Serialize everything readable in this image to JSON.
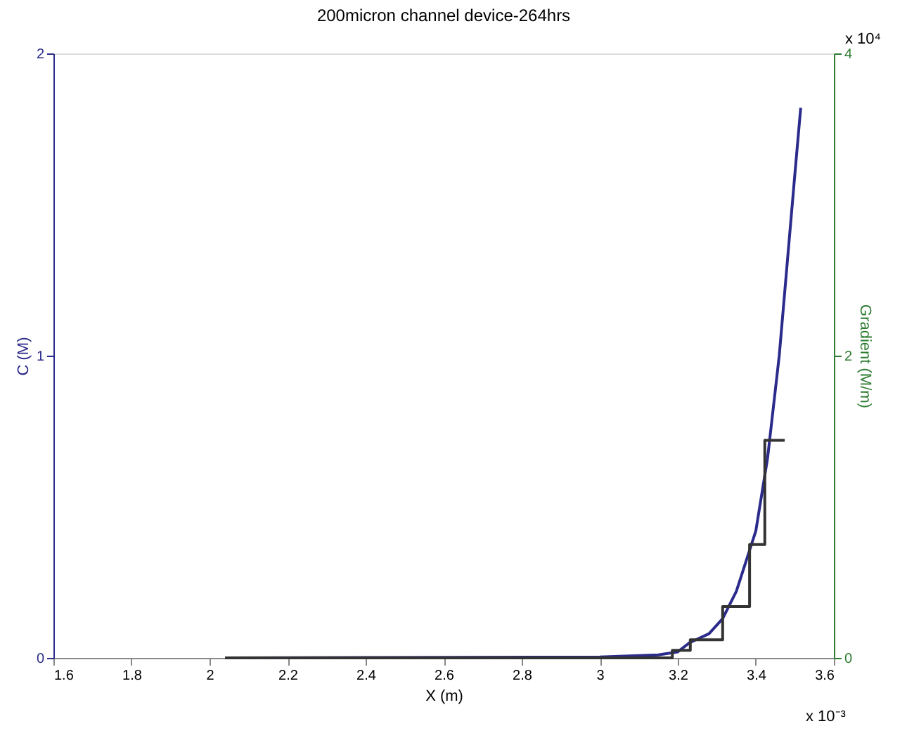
{
  "chart_data": {
    "type": "line",
    "title": "200micron channel device-264hrs",
    "xlabel": "X (m)",
    "ylabel": "C (M)",
    "y2label": "Gradient (M/m)",
    "xlim": [
      1.6,
      3.6
    ],
    "xticks": [
      1.6,
      1.8,
      2,
      2.2,
      2.4,
      2.6,
      2.8,
      3,
      3.2,
      3.4,
      3.6
    ],
    "ylim": [
      0,
      2
    ],
    "yticks": [
      0,
      1,
      2
    ],
    "y2lim": [
      0,
      4
    ],
    "y2ticks": [
      0,
      2,
      4
    ],
    "annotations": [
      "x 10⁻³",
      "x 10⁴"
    ],
    "grid": false,
    "legend": false,
    "marker": "none",
    "series": [
      {
        "color": "#2b2b8c",
        "x": [
          2.04,
          3.0,
          3.15,
          3.2,
          3.23,
          3.28,
          3.315,
          3.35,
          3.375,
          3.4,
          3.43,
          3.46,
          3.48,
          3.5,
          3.515
        ],
        "values": [
          0,
          0.003,
          0.01,
          0.02,
          0.05,
          0.08,
          0.13,
          0.22,
          0.32,
          0.42,
          0.66,
          1.0,
          1.3,
          1.6,
          1.82
        ]
      },
      {
        "type": "step",
        "color": "#333333",
        "axis": "y2",
        "x": [
          2.04,
          3.186,
          3.232,
          3.315,
          3.384,
          3.423,
          3.474
        ],
        "values": [
          0,
          0.05,
          0.12,
          0.34,
          0.75,
          1.44,
          1.44
        ]
      }
    ]
  }
}
